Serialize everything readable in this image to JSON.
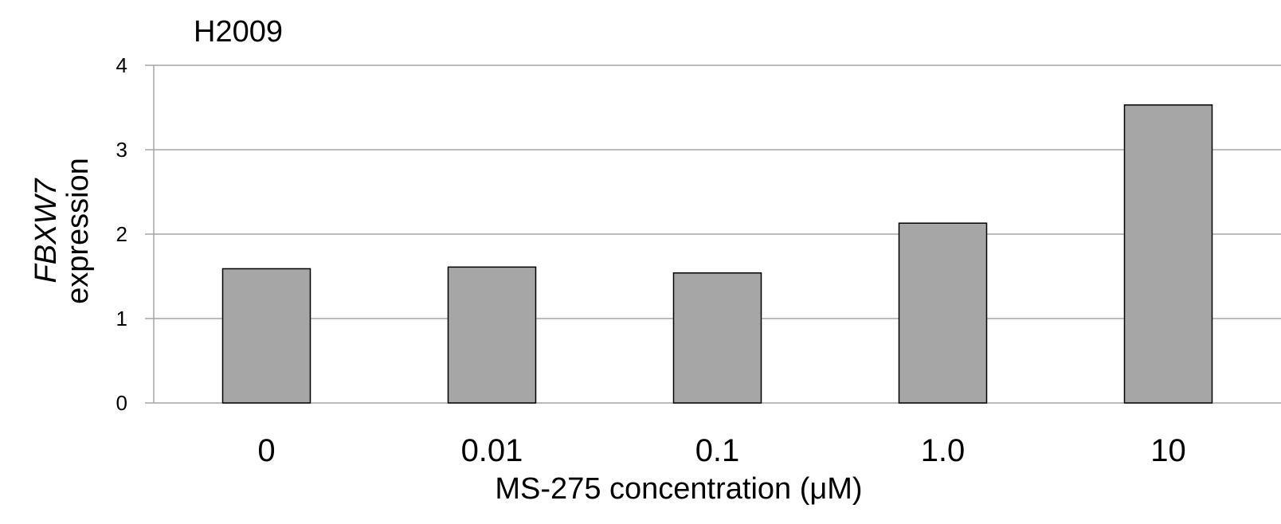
{
  "chart_data": {
    "type": "bar",
    "title": "H2009",
    "categories": [
      "0",
      "0.01",
      "0.1",
      "1.0",
      "10"
    ],
    "values": [
      1.59,
      1.61,
      1.54,
      2.13,
      3.53
    ],
    "ylabel_italic": "FBXW7",
    "ylabel": "expression",
    "xlabel": "MS-275 concentration (μM)",
    "ylim": [
      0,
      4
    ],
    "yticks": [
      "0",
      "1",
      "2",
      "3",
      "4"
    ],
    "grid": true,
    "legend": "none",
    "colors": {
      "bar_fill": "#a6a6a6",
      "bar_stroke": "#000000",
      "grid": "#a6a6a6"
    }
  }
}
